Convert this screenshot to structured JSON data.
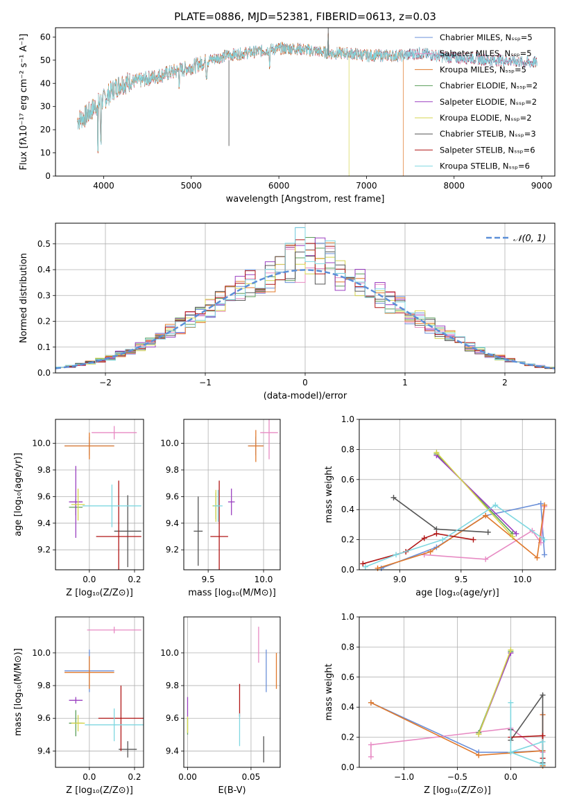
{
  "colors": {
    "grid": "#b0b0b0",
    "gaussian": "#5b8fd8",
    "models": [
      "#6a8fd8",
      "#e78ac3",
      "#e0782a",
      "#5a9e5a",
      "#9a3fc0",
      "#d4d44c",
      "#555555",
      "#b01515",
      "#7fd7e0"
    ]
  },
  "chart_data": [
    {
      "type": "line",
      "id": "spectrum",
      "title": "PLATE=0886, MJD=52381, FIBERID=0613, z=0.03",
      "xlabel": "wavelength [Angstrom, rest frame]",
      "ylabel": "Flux [fλ10⁻¹⁷ erg cm⁻² s⁻¹ A⁻¹]",
      "xlim": [
        3450,
        9150
      ],
      "ylim": [
        0,
        64
      ],
      "xticks": [
        4000,
        5000,
        6000,
        7000,
        8000,
        9000
      ],
      "yticks": [
        0,
        10,
        20,
        30,
        40,
        50,
        60
      ],
      "grid": false,
      "legend_position": "top-right",
      "legend": [
        "Chabrier MILES, Nₛₛₚ=5",
        "Salpeter MILES, Nₛₛₚ=5",
        "Kroupa MILES, Nₛₛₚ=5",
        "Chabrier ELODIE, Nₛₛₚ=2",
        "Salpeter ELODIE, Nₛₛₚ=2",
        "Kroupa ELODIE, Nₛₛₚ=2",
        "Chabrier STELIB, Nₛₛₚ=3",
        "Salpeter STELIB, Nₛₛₚ=6",
        "Kroupa STELIB, Nₛₛₚ=6"
      ],
      "continuum": [
        [
          3700,
          24
        ],
        [
          3800,
          26
        ],
        [
          3900,
          30
        ],
        [
          4000,
          33
        ],
        [
          4100,
          37
        ],
        [
          4200,
          40
        ],
        [
          4400,
          41
        ],
        [
          4600,
          43
        ],
        [
          4800,
          45
        ],
        [
          5000,
          47
        ],
        [
          5200,
          50
        ],
        [
          5400,
          52
        ],
        [
          5600,
          53
        ],
        [
          5800,
          54
        ],
        [
          6000,
          55
        ],
        [
          6200,
          55
        ],
        [
          6400,
          54
        ],
        [
          6600,
          53
        ],
        [
          6800,
          53
        ],
        [
          7000,
          52
        ],
        [
          7200,
          52
        ],
        [
          7400,
          52
        ],
        [
          7600,
          53
        ],
        [
          7800,
          52
        ],
        [
          8000,
          51
        ],
        [
          8200,
          51
        ],
        [
          8400,
          50
        ],
        [
          8600,
          50
        ],
        [
          8800,
          49
        ],
        [
          8950,
          49
        ]
      ],
      "series_extent": [
        [
          3700,
          8950
        ],
        [
          3700,
          8950
        ],
        [
          3700,
          7420
        ],
        [
          3700,
          8950
        ],
        [
          3700,
          8950
        ],
        [
          3700,
          6800
        ],
        [
          3700,
          8950
        ],
        [
          3700,
          8950
        ],
        [
          3700,
          8950
        ]
      ]
    },
    {
      "type": "histogram",
      "id": "residuals",
      "xlabel": "(data-model)/error",
      "ylabel": "Normed distribution",
      "xlim": [
        -2.5,
        2.5
      ],
      "ylim": [
        0,
        0.58
      ],
      "xticks": [
        -2,
        -1,
        0,
        1,
        2
      ],
      "yticks": [
        0.0,
        0.1,
        0.2,
        0.3,
        0.4,
        0.5
      ],
      "grid": true,
      "legend_position": "top-right",
      "legend": [
        "𝒩(0, 1)"
      ],
      "bin_width": 0.1
    },
    {
      "type": "scatter",
      "id": "age-vs-Z",
      "xlabel": "Z [log₁₀(Z/Z⊙)]",
      "ylabel": "age  [log₁₀(age/yr)]",
      "xlim": [
        -0.15,
        0.24
      ],
      "ylim": [
        9.05,
        10.18
      ],
      "xticks": [
        0.0,
        0.2
      ],
      "yticks": [
        9.2,
        9.4,
        9.6,
        9.8,
        10.0
      ],
      "grid": true,
      "points": [
        {
          "x": 0.0,
          "y": 9.98,
          "xerr": 0.11,
          "yerr": 0.07,
          "color": 0
        },
        {
          "x": 0.11,
          "y": 10.08,
          "xerr": 0.1,
          "yerr": 0.05,
          "color": 1
        },
        {
          "x": 0.0,
          "y": 9.98,
          "xerr": 0.11,
          "yerr": 0.1,
          "color": 2
        },
        {
          "x": -0.06,
          "y": 9.52,
          "xerr": 0.03,
          "yerr": 0.06,
          "color": 3
        },
        {
          "x": -0.06,
          "y": 9.56,
          "xerr": 0.03,
          "yerr": 0.27,
          "color": 4
        },
        {
          "x": -0.05,
          "y": 9.54,
          "xerr": 0.03,
          "yerr": 0.12,
          "color": 5
        },
        {
          "x": 0.17,
          "y": 9.34,
          "xerr": 0.06,
          "yerr": 0.27,
          "color": 6
        },
        {
          "x": 0.13,
          "y": 9.3,
          "xerr": 0.1,
          "yerr": 0.42,
          "color": 7
        },
        {
          "x": 0.1,
          "y": 9.53,
          "xerr": 0.13,
          "yerr": 0.16,
          "color": 8
        }
      ]
    },
    {
      "type": "scatter",
      "id": "age-vs-mass",
      "xlabel": "mass [log₁₀(M/M⊙)]",
      "ylabel": "",
      "xlim": [
        9.28,
        10.15
      ],
      "ylim": [
        9.05,
        10.18
      ],
      "xticks": [
        9.5,
        10.0
      ],
      "yticks": [
        9.2,
        9.4,
        9.6,
        9.8,
        10.0
      ],
      "grid": true,
      "points": [
        {
          "x": 9.93,
          "y": 9.98,
          "xerr": 0.07,
          "yerr": 0.07,
          "color": 0
        },
        {
          "x": 10.05,
          "y": 10.08,
          "xerr": 0.08,
          "yerr": 0.2,
          "color": 1
        },
        {
          "x": 9.93,
          "y": 9.98,
          "xerr": 0.07,
          "yerr": 0.12,
          "color": 2
        },
        {
          "x": 9.57,
          "y": 9.53,
          "xerr": 0.03,
          "yerr": 0.1,
          "color": 3
        },
        {
          "x": 9.71,
          "y": 9.56,
          "xerr": 0.03,
          "yerr": 0.1,
          "color": 4
        },
        {
          "x": 9.57,
          "y": 9.53,
          "xerr": 0.03,
          "yerr": 0.12,
          "color": 5
        },
        {
          "x": 9.41,
          "y": 9.34,
          "xerr": 0.04,
          "yerr": 0.26,
          "color": 6
        },
        {
          "x": 9.6,
          "y": 9.3,
          "xerr": 0.08,
          "yerr": 0.42,
          "color": 7
        },
        {
          "x": 9.59,
          "y": 9.53,
          "xerr": 0.04,
          "yerr": 0.12,
          "color": 8
        }
      ]
    },
    {
      "type": "line",
      "id": "weight-vs-age",
      "xlabel": "age  [log₁₀(age/yr)]",
      "ylabel": "mass weight",
      "xlim": [
        8.67,
        10.27
      ],
      "ylim": [
        0,
        1
      ],
      "xticks": [
        9.0,
        9.5,
        10.0
      ],
      "yticks": [
        0.0,
        0.2,
        0.4,
        0.6,
        0.8,
        1.0
      ],
      "grid": true,
      "series": [
        {
          "color": 0,
          "points": [
            [
              8.85,
              0.01
            ],
            [
              9.3,
              0.15
            ],
            [
              9.7,
              0.36
            ],
            [
              10.15,
              0.44
            ],
            [
              10.18,
              0.1
            ]
          ]
        },
        {
          "color": 1,
          "points": [
            [
              9.2,
              0.1
            ],
            [
              9.7,
              0.07
            ],
            [
              10.08,
              0.26
            ],
            [
              10.15,
              0.18
            ],
            [
              10.18,
              0.42
            ]
          ]
        },
        {
          "color": 2,
          "points": [
            [
              8.82,
              0.01
            ],
            [
              9.25,
              0.12
            ],
            [
              9.7,
              0.36
            ],
            [
              10.12,
              0.08
            ],
            [
              10.18,
              0.43
            ]
          ]
        },
        {
          "color": 3,
          "points": [
            [
              9.3,
              0.77
            ],
            [
              9.92,
              0.24
            ]
          ]
        },
        {
          "color": 4,
          "points": [
            [
              9.3,
              0.76
            ],
            [
              9.95,
              0.24
            ]
          ]
        },
        {
          "color": 5,
          "points": [
            [
              9.3,
              0.78
            ],
            [
              9.92,
              0.22
            ]
          ]
        },
        {
          "color": 6,
          "points": [
            [
              8.95,
              0.48
            ],
            [
              9.3,
              0.27
            ],
            [
              9.72,
              0.25
            ]
          ]
        },
        {
          "color": 7,
          "points": [
            [
              8.7,
              0.04
            ],
            [
              9.05,
              0.12
            ],
            [
              9.2,
              0.21
            ],
            [
              9.3,
              0.24
            ],
            [
              9.6,
              0.2
            ]
          ]
        },
        {
          "color": 8,
          "points": [
            [
              8.72,
              0.02
            ],
            [
              8.97,
              0.1
            ],
            [
              9.35,
              0.2
            ],
            [
              9.78,
              0.43
            ],
            [
              10.18,
              0.2
            ]
          ]
        }
      ]
    },
    {
      "type": "scatter",
      "id": "mass-vs-Z",
      "xlabel": "Z [log₁₀(Z/Z⊙)]",
      "ylabel": "mass [log₁₀(M/M⊙)]",
      "xlim": [
        -0.15,
        0.24
      ],
      "ylim": [
        9.3,
        10.22
      ],
      "xticks": [
        0.0,
        0.2
      ],
      "yticks": [
        9.4,
        9.6,
        9.8,
        10.0
      ],
      "grid": true,
      "points": [
        {
          "x": 0.0,
          "y": 9.89,
          "xerr": 0.11,
          "yerr": 0.13,
          "color": 0
        },
        {
          "x": 0.11,
          "y": 10.14,
          "xerr": 0.12,
          "yerr": 0.02,
          "color": 1
        },
        {
          "x": 0.0,
          "y": 9.88,
          "xerr": 0.11,
          "yerr": 0.1,
          "color": 2
        },
        {
          "x": -0.06,
          "y": 9.57,
          "xerr": 0.03,
          "yerr": 0.08,
          "color": 3
        },
        {
          "x": -0.06,
          "y": 9.71,
          "xerr": 0.03,
          "yerr": 0.02,
          "color": 4
        },
        {
          "x": -0.05,
          "y": 9.57,
          "xerr": 0.03,
          "yerr": 0.05,
          "color": 5
        },
        {
          "x": 0.17,
          "y": 9.41,
          "xerr": 0.04,
          "yerr": 0.05,
          "color": 6
        },
        {
          "x": 0.14,
          "y": 9.6,
          "xerr": 0.1,
          "yerr": 0.2,
          "color": 7
        },
        {
          "x": 0.11,
          "y": 9.56,
          "xerr": 0.13,
          "yerr": 0.1,
          "color": 8
        }
      ]
    },
    {
      "type": "scatter",
      "id": "mass-vs-ebv",
      "xlabel": "E(B-V)",
      "ylabel": "",
      "xlim": [
        -0.003,
        0.073
      ],
      "ylim": [
        9.3,
        10.22
      ],
      "xticks": [
        0.0,
        0.05
      ],
      "yticks": [
        9.4,
        9.6,
        9.8,
        10.0
      ],
      "grid": true,
      "points": [
        {
          "x": 0.062,
          "y": 9.89,
          "xerr": 0,
          "yerr": 0.13,
          "color": 0
        },
        {
          "x": 0.056,
          "y": 10.05,
          "xerr": 0,
          "yerr": 0.11,
          "color": 1
        },
        {
          "x": 0.07,
          "y": 9.89,
          "xerr": 0,
          "yerr": 0.11,
          "color": 2
        },
        {
          "x": 0.0,
          "y": 9.55,
          "xerr": 0,
          "yerr": 0.05,
          "color": 3
        },
        {
          "x": 0.0,
          "y": 9.67,
          "xerr": 0,
          "yerr": 0.06,
          "color": 4
        },
        {
          "x": 0.0,
          "y": 9.56,
          "xerr": 0,
          "yerr": 0.05,
          "color": 5
        },
        {
          "x": 0.06,
          "y": 9.41,
          "xerr": 0,
          "yerr": 0.08,
          "color": 6
        },
        {
          "x": 0.041,
          "y": 9.71,
          "xerr": 0,
          "yerr": 0.1,
          "color": 7
        },
        {
          "x": 0.041,
          "y": 9.53,
          "xerr": 0,
          "yerr": 0.1,
          "color": 8
        }
      ]
    },
    {
      "type": "line",
      "id": "weight-vs-Z",
      "xlabel": "Z [log₁₀(Z/Z⊙)]",
      "ylabel": "mass weight",
      "xlim": [
        -1.42,
        0.42
      ],
      "ylim": [
        0,
        1
      ],
      "xticks": [
        -1.0,
        -0.5,
        0.0
      ],
      "yticks": [
        0.0,
        0.2,
        0.4,
        0.6,
        0.8,
        1.0
      ],
      "grid": true,
      "series": [
        {
          "color": 0,
          "points": [
            [
              -1.31,
              0.43
            ],
            [
              -0.3,
              0.1
            ],
            [
              0.0,
              0.1
            ],
            [
              0.3,
              0.11
            ],
            [
              0.3,
              0.01
            ]
          ]
        },
        {
          "color": 1,
          "points": [
            [
              -1.31,
              0.07
            ],
            [
              -1.31,
              0.15
            ],
            [
              0.0,
              0.26
            ],
            [
              0.3,
              0.1
            ],
            [
              0.3,
              0.35
            ]
          ]
        },
        {
          "color": 2,
          "points": [
            [
              -1.31,
              0.43
            ],
            [
              -0.3,
              0.08
            ],
            [
              0.3,
              0.11
            ],
            [
              0.3,
              0.35
            ],
            [
              0.3,
              0.01
            ]
          ]
        },
        {
          "color": 3,
          "points": [
            [
              -0.3,
              0.23
            ],
            [
              0.0,
              0.77
            ]
          ]
        },
        {
          "color": 4,
          "points": [
            [
              -0.3,
              0.22
            ],
            [
              0.0,
              0.76
            ]
          ]
        },
        {
          "color": 5,
          "points": [
            [
              -0.3,
              0.22
            ],
            [
              0.0,
              0.78
            ]
          ]
        },
        {
          "color": 6,
          "points": [
            [
              0.0,
              0.25
            ],
            [
              0.0,
              0.18
            ],
            [
              0.3,
              0.48
            ],
            [
              0.3,
              0.03
            ]
          ]
        },
        {
          "color": 7,
          "points": [
            [
              0.0,
              0.2
            ],
            [
              0.3,
              0.21
            ],
            [
              0.3,
              0.06
            ]
          ]
        },
        {
          "color": 8,
          "points": [
            [
              0.0,
              0.43
            ],
            [
              0.0,
              0.1
            ],
            [
              0.3,
              0.17
            ],
            [
              0.3,
              0.02
            ],
            [
              0.0,
              0.1
            ]
          ]
        }
      ]
    }
  ]
}
